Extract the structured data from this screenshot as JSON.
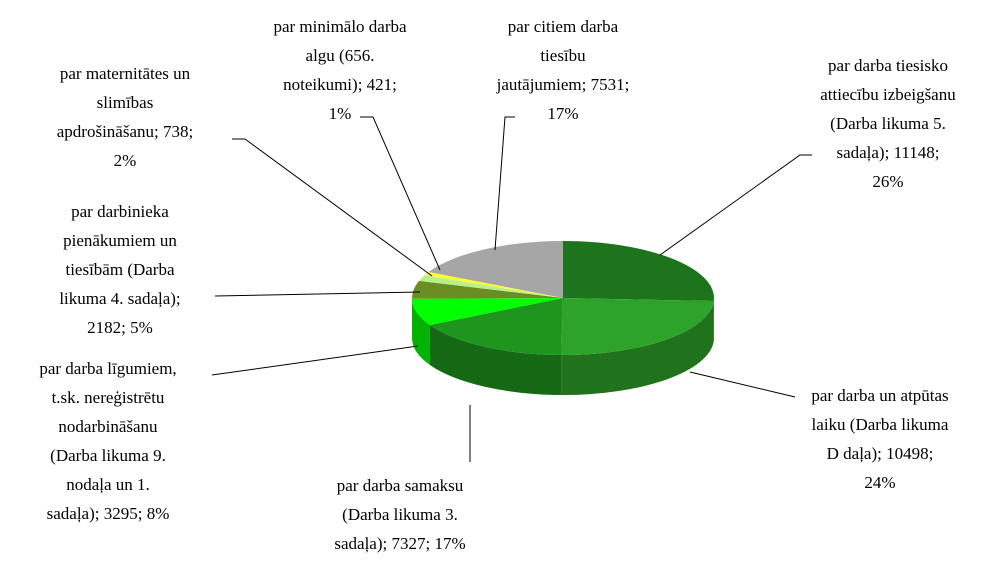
{
  "chart_data": {
    "type": "pie3d",
    "labels": [
      [
        "par darba tiesisko",
        "attiecību izbeigšanu",
        "(Darba likuma 5.",
        "sadaļa); 11148;",
        "26%"
      ],
      [
        "par darba un atpūtas",
        "laiku (Darba likuma",
        "D daļa); 10498;",
        "24%"
      ],
      [
        "par darba samaksu",
        "(Darba likuma 3.",
        "sadaļa); 7327; 17%"
      ],
      [
        "par darba līgumiem,",
        "t.sk. nereģistrētu",
        "nodarbināšanu",
        "(Darba likuma 9.",
        "nodaļa un 1.",
        "sadaļa); 3295; 8%"
      ],
      [
        "par darbinieka",
        "pienākumiem un",
        "tiesībām (Darba",
        "likuma 4. sadaļa);",
        "2182; 5%"
      ],
      [
        "par maternitātes un",
        "slimības",
        "apdrošināšanu; 738;",
        "2%"
      ],
      [
        "par minimālo darba",
        "algu (656.",
        "noteikumi); 421;",
        "1%"
      ],
      [
        "par citiem darba",
        "tiesību",
        "jautājumiem; 7531;",
        "17%"
      ]
    ],
    "values": [
      11148,
      10498,
      7327,
      3295,
      2182,
      738,
      421,
      7531
    ],
    "colors": [
      "#1d741d",
      "#2ea32a",
      "#1e961e",
      "#00ff00",
      "#6b8e23",
      "#b8f08a",
      "#ffff33",
      "#a6a6a6"
    ]
  }
}
